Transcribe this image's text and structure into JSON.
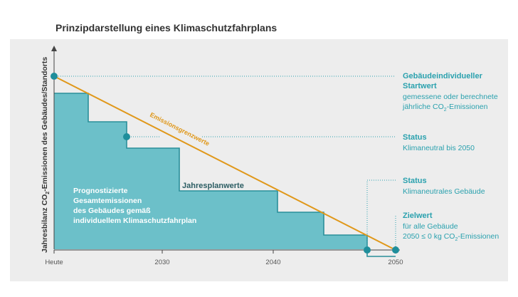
{
  "title": "Prinzipdarstellung eines Klimaschutzfahrplans",
  "axis": {
    "ylabel_pre": "Jahresbilanz CO",
    "ylabel_sub": "2",
    "ylabel_post": "-Emissionen des Gebäudes/Standorts",
    "ticks": [
      "Heute",
      "2030",
      "2040",
      "2050"
    ]
  },
  "lines": {
    "emissions_limit": "Emissionsgrenzwerte",
    "annual_plan": "Jahresplanwerte"
  },
  "area_label": [
    "Prognostizierte",
    "Gesamtemissionen",
    "des Gebäudes gemäß",
    "individuellem Klimaschutzfahrplan"
  ],
  "annotations": {
    "start": {
      "title1": "Gebäudeindividueller",
      "title2": "Startwert",
      "line1": "gemessene oder berechnete",
      "line2_pre": "jährliche CO",
      "line2_sub": "2",
      "line2_post": "-Emissionen"
    },
    "status1": {
      "title": "Status",
      "text": "Klimaneutral bis 2050"
    },
    "status2": {
      "title": "Status",
      "text": "Klimaneutrales Gebäude"
    },
    "target": {
      "title": "Zielwert",
      "line1": "für alle Gebäude",
      "line2_pre": "2050 ≤ 0 kg CO",
      "line2_sub": "2",
      "line2_post": "-Emissionen"
    }
  },
  "colors": {
    "teal": "#2aa1ae",
    "area": "#6cc0c9",
    "step_line": "#2a8f9a",
    "orange": "#e0981a",
    "background": "#ededed"
  }
}
